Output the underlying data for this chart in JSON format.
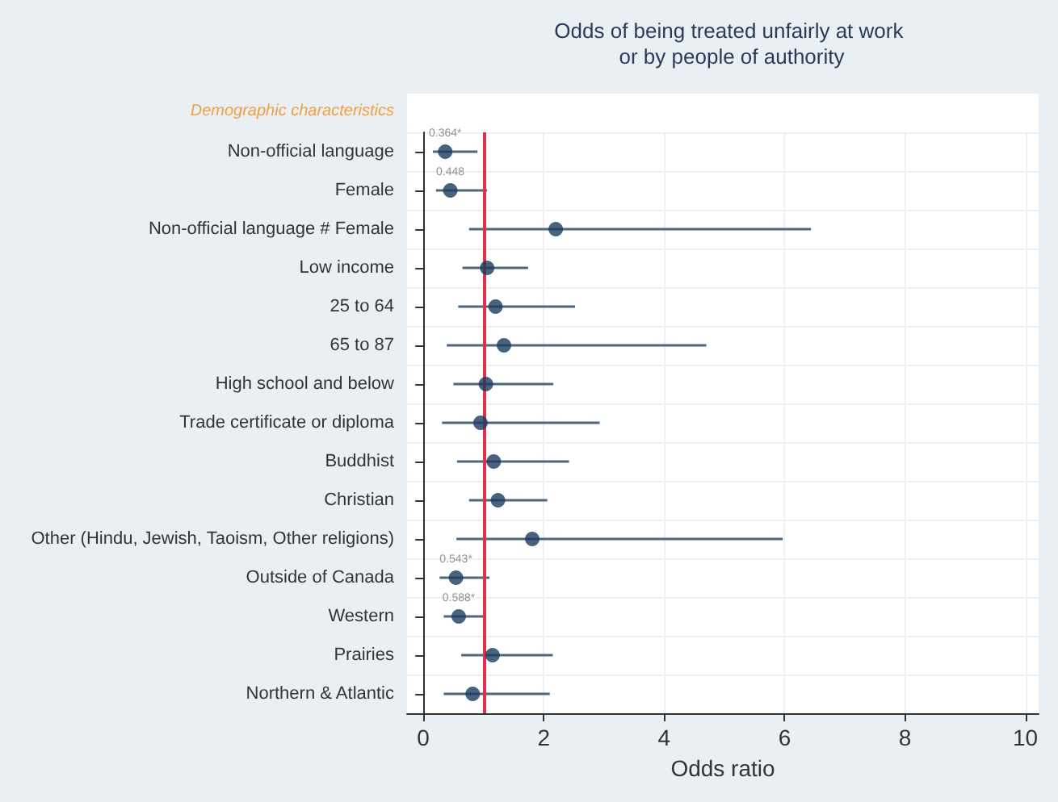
{
  "chart_data": {
    "type": "scatter",
    "orientation": "horizontal",
    "title": "Odds of being treated unfairly at work or by people of authority",
    "xlabel": "Odds ratio",
    "annotations": [
      "Demographic characteristics"
    ],
    "categories": [
      "Non-official language",
      "Female",
      "Non-official language # Female",
      "Low income",
      "25 to 64",
      "65 to 87",
      "High school and below",
      "Trade certificate or diploma",
      "Buddhist",
      "Christian",
      "Other (Hindu, Jewish, Taoism, Other religions)",
      "Outside of Canada",
      "Western",
      "Prairies",
      "Northern & Atlantic"
    ],
    "series": [
      {
        "color": "#1b3b5e",
        "values": [
          0.364,
          0.448,
          2.2,
          1.06,
          1.2,
          1.34,
          1.04,
          0.95,
          1.17,
          1.24,
          1.81,
          0.543,
          0.588,
          1.15,
          0.82
        ],
        "errors": [
          [
            0.16,
            0.9
          ],
          [
            0.21,
            1.06
          ],
          [
            0.76,
            6.44
          ],
          [
            0.65,
            1.74
          ],
          [
            0.58,
            2.52
          ],
          [
            0.39,
            4.7
          ],
          [
            0.5,
            2.16
          ],
          [
            0.31,
            2.93
          ],
          [
            0.56,
            2.42
          ],
          [
            0.76,
            2.06
          ],
          [
            0.55,
            5.97
          ],
          [
            0.27,
            1.1
          ],
          [
            0.34,
            1.04
          ],
          [
            0.63,
            2.15
          ],
          [
            0.34,
            2.1
          ]
        ],
        "value_labels": [
          "0.364*",
          "0.448",
          null,
          null,
          null,
          null,
          null,
          null,
          null,
          null,
          null,
          "0.543*",
          "0.588*",
          null,
          null
        ]
      }
    ],
    "xlim": [
      -0.27,
      10.22
    ],
    "xticks": [
      0,
      2,
      4,
      6,
      8,
      10
    ],
    "ref_lines": [
      {
        "axis": "x",
        "value": 1,
        "color": "#e0304a"
      }
    ],
    "grid": true,
    "marker": "circle"
  }
}
